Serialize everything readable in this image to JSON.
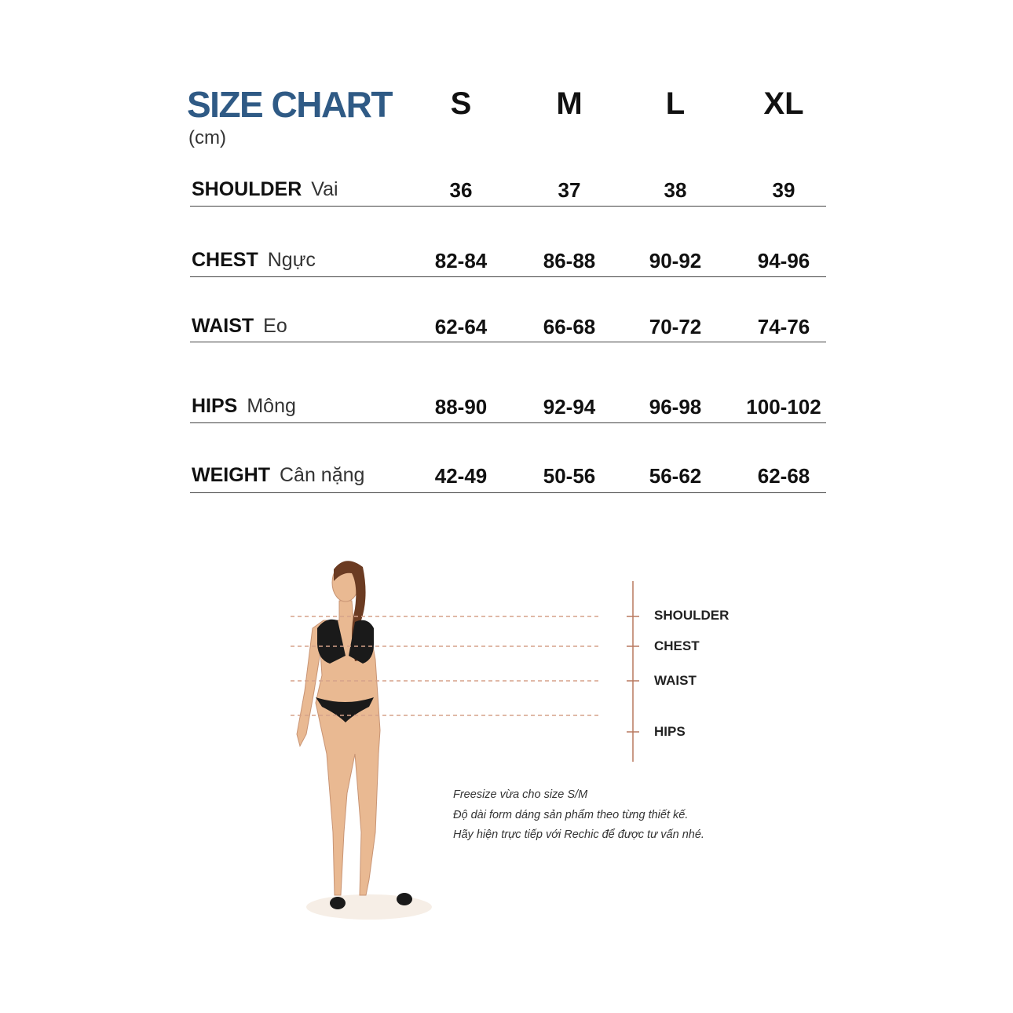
{
  "title": "SIZE CHART",
  "unit": "(cm)",
  "title_color": "#2f5a85",
  "sizes": [
    "S",
    "M",
    "L",
    "XL"
  ],
  "rows": [
    {
      "label": "SHOULDER",
      "label_vi": "Vai",
      "values": [
        "36",
        "37",
        "38",
        "39"
      ]
    },
    {
      "label": "CHEST",
      "label_vi": "Ngực",
      "values": [
        "82-84",
        "86-88",
        "90-92",
        "94-96"
      ]
    },
    {
      "label": "WAIST",
      "label_vi": "Eo",
      "values": [
        "62-64",
        "66-68",
        "70-72",
        "74-76"
      ]
    },
    {
      "label": "HIPS",
      "label_vi": "Mông",
      "values": [
        "88-90",
        "92-94",
        "96-98",
        "100-102"
      ]
    },
    {
      "label": "WEIGHT",
      "label_vi": "Cân nặng",
      "values": [
        "42-49",
        "50-56",
        "56-62",
        "62-68"
      ]
    }
  ],
  "diagram": {
    "labels": [
      "SHOULDER",
      "CHEST",
      "WAIST",
      "HIPS"
    ]
  },
  "notes": [
    "Freesize vừa cho size S/M",
    "Độ dài form dáng sản phẩm theo từng thiết kế.",
    "Hãy hiện trực tiếp với Rechic để được tư vấn nhé."
  ]
}
